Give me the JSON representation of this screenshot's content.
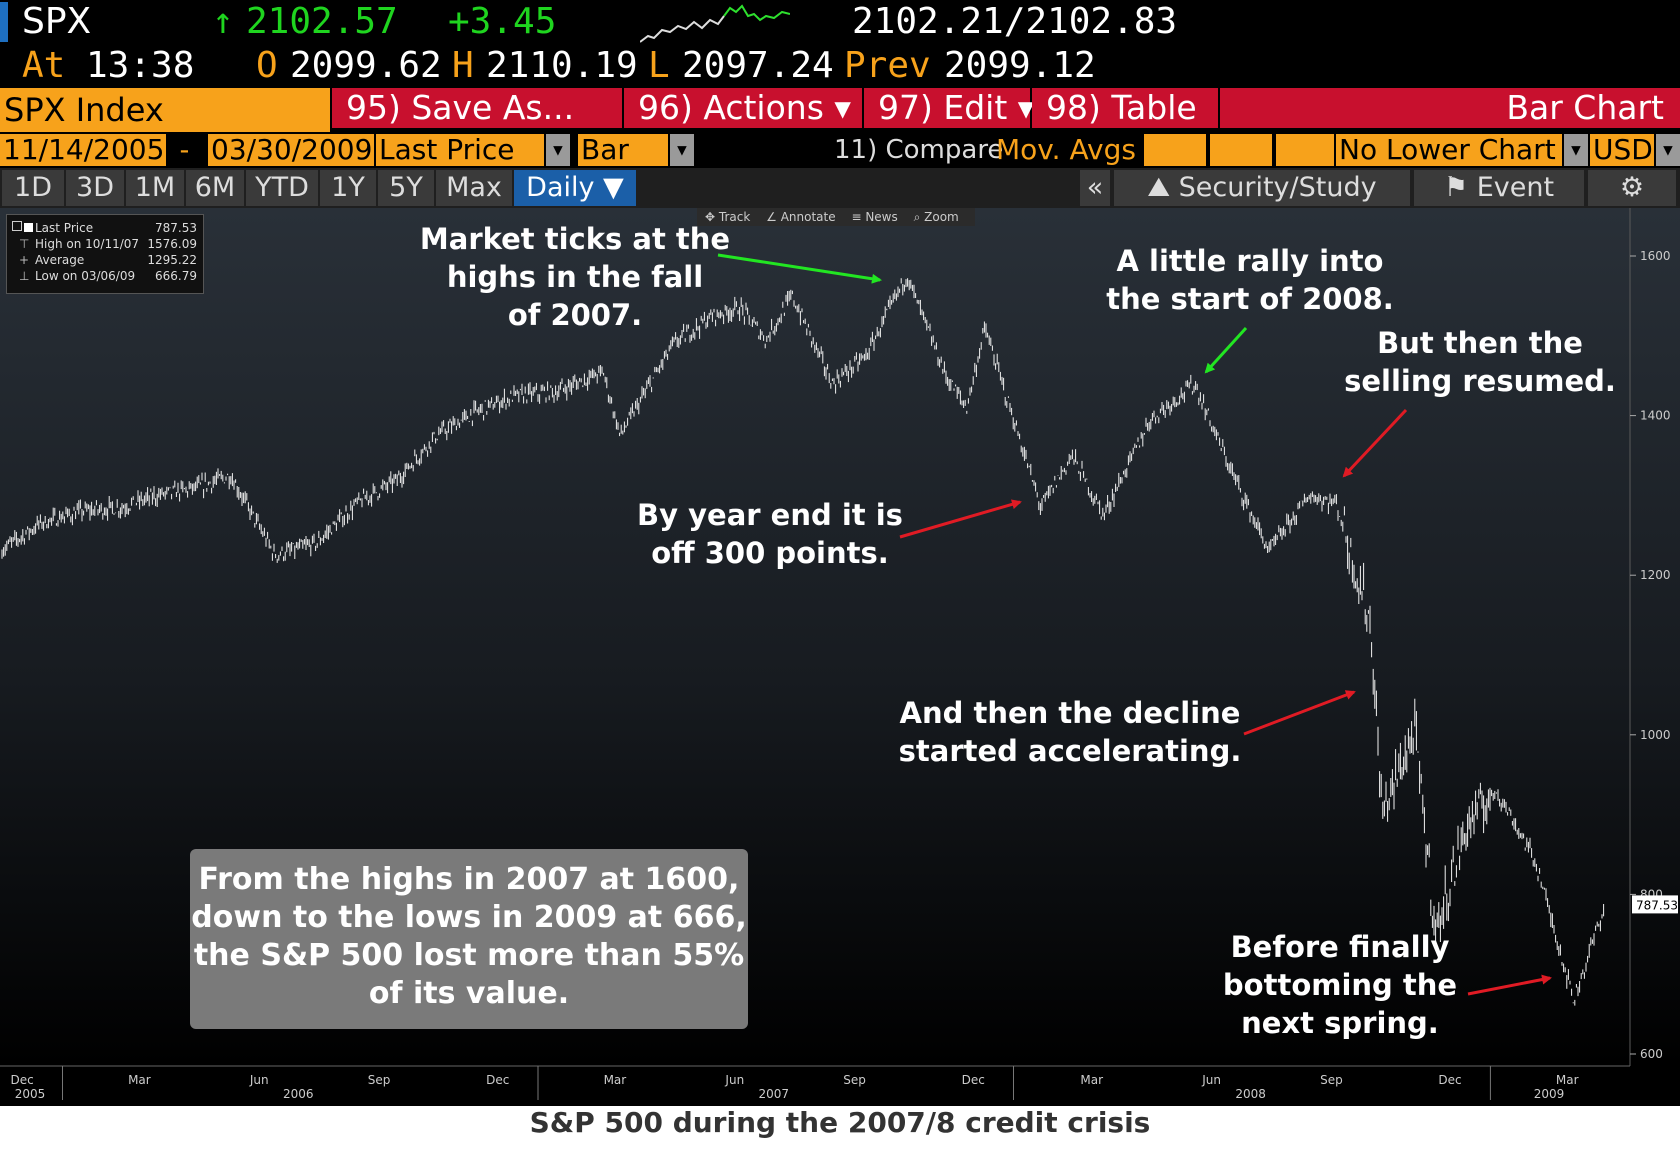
{
  "quote": {
    "ticker": "SPX",
    "last": "2102.57",
    "change": "+3.45",
    "bid_ask": "2102.21/2102.83",
    "time_label": "At",
    "time": "13:38",
    "open_label": "O",
    "open": "2099.62",
    "high_label": "H",
    "high": "2110.19",
    "low_label": "L",
    "low": "2097.24",
    "prev_label": "Prev",
    "prev": "2099.12"
  },
  "toolbar": {
    "security": "SPX Index",
    "save": "95) Save As...",
    "actions": "96) Actions ▾",
    "edit": "97) Edit ▾",
    "table": "98) Table",
    "chart_type": "Bar Chart"
  },
  "settings": {
    "start_date": "11/14/2005",
    "dash": "-",
    "end_date": "03/30/2009",
    "field": "Last Price",
    "style": "Bar",
    "compare": "11) Compare",
    "mov_avgs": "Mov. Avgs",
    "lower_chart": "No Lower Chart",
    "currency": "USD"
  },
  "periods": [
    "1D",
    "3D",
    "1M",
    "6M",
    "YTD",
    "1Y",
    "5Y",
    "Max"
  ],
  "frequency": "Daily ▼",
  "right_tools": {
    "collapse": "«",
    "security_study": "Security/Study",
    "event": "Event"
  },
  "chart_tools": [
    "Track",
    "Annotate",
    "News",
    "Zoom"
  ],
  "legend": [
    {
      "label": "Last Price",
      "value": "787.53"
    },
    {
      "label": "High on 10/11/07",
      "value": "1576.09"
    },
    {
      "label": "Average",
      "value": "1295.22"
    },
    {
      "label": "Low on 03/06/09",
      "value": "666.79"
    }
  ],
  "annotations": {
    "highs": "Market ticks at the\nhighs in the fall\nof 2007.",
    "rally": "A little rally into\nthe start of 2008.",
    "resumed": "But then the\nselling resumed.",
    "yearend": "By year end it is\noff 300 points.",
    "accel": "And then the decline\nstarted accelerating.",
    "bottom": "Before finally\nbottoming the\nnext spring.",
    "summary": "From the highs in 2007 at 1600,\ndown to the lows in 2009 at 666,\nthe S&P 500 lost more than 55%\nof its value."
  },
  "caption": "S&P 500 during the 2007/8 credit crisis",
  "chart_data": {
    "type": "bar",
    "x_ticks": [
      "Dec",
      "Mar",
      "Jun",
      "Sep",
      "Dec",
      "Mar",
      "Jun",
      "Sep",
      "Dec",
      "Mar",
      "Jun",
      "Sep",
      "Dec",
      "Mar"
    ],
    "years": [
      "2005",
      "2006",
      "2007",
      "2008",
      "2009"
    ],
    "y_ticks": [
      1600,
      1400,
      1200,
      1000,
      800,
      600
    ],
    "ylim": [
      600,
      1600
    ],
    "last_price_label": "787.53",
    "series": [
      {
        "x": [
          "2005-11-14",
          "2005-12-15",
          "2006-01-15",
          "2006-02-15",
          "2006-03-15",
          "2006-04-15",
          "2006-05-10",
          "2006-06-13",
          "2006-07-15",
          "2006-08-15",
          "2006-09-15",
          "2006-10-15",
          "2006-11-15",
          "2006-12-15",
          "2007-01-15",
          "2007-02-20",
          "2007-03-05",
          "2007-04-15",
          "2007-05-15",
          "2007-06-05",
          "2007-06-25",
          "2007-07-15",
          "2007-08-15",
          "2007-09-10",
          "2007-10-11",
          "2007-11-10",
          "2007-11-26",
          "2007-12-10",
          "2008-01-22",
          "2008-02-15",
          "2008-03-10",
          "2008-04-15",
          "2008-05-19",
          "2008-06-15",
          "2008-07-15",
          "2008-08-15",
          "2008-09-05",
          "2008-10-01",
          "2008-10-10",
          "2008-11-04",
          "2008-11-20",
          "2008-12-15",
          "2009-01-06",
          "2009-02-05",
          "2009-03-06",
          "2009-03-30"
        ],
        "values": [
          1230,
          1265,
          1280,
          1285,
          1300,
          1310,
          1325,
          1225,
          1240,
          1290,
          1320,
          1375,
          1405,
          1425,
          1430,
          1455,
          1375,
          1490,
          1525,
          1535,
          1495,
          1550,
          1440,
          1475,
          1576,
          1450,
          1410,
          1510,
          1285,
          1350,
          1275,
          1395,
          1440,
          1335,
          1230,
          1300,
          1290,
          1140,
          900,
          1005,
          752,
          890,
          930,
          840,
          667,
          787.53
        ]
      }
    ]
  }
}
